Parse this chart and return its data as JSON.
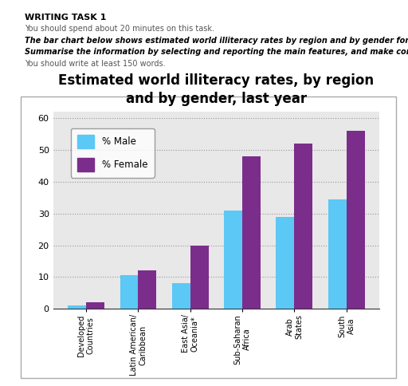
{
  "title": "Estimated world illiteracy rates, by region\nand by gender, last year",
  "header_line1": "WRITING TASK 1",
  "header_line2": "You should spend about 20 minutes on this task.",
  "header_line3": "The bar chart below shows estimated world illiteracy rates by region and by gender for the last year.",
  "header_line4": "Summarise the information by selecting and reporting the main features, and make comparisons where relevant.",
  "header_line5": "You should write at least 150 words.",
  "categories": [
    "Developed\nCountries",
    "Latin American/\nCaribbean",
    "East Asia/\nOceania*",
    "Sub-Saharan\nAfrica",
    "Arab\nStates",
    "South\nAsia"
  ],
  "male_values": [
    1,
    10.5,
    8,
    31,
    29,
    34.5
  ],
  "female_values": [
    2,
    12,
    20,
    48,
    52,
    56
  ],
  "male_color": "#5BC8F5",
  "female_color": "#7B2D8B",
  "ylim": [
    0,
    62
  ],
  "yticks": [
    0,
    10,
    20,
    30,
    40,
    50,
    60
  ],
  "chart_bg_color": "#E8E8E8",
  "page_bg_color": "#ffffff",
  "legend_male": "% Male",
  "legend_female": "% Female",
  "bar_width": 0.35,
  "title_fontsize": 12
}
